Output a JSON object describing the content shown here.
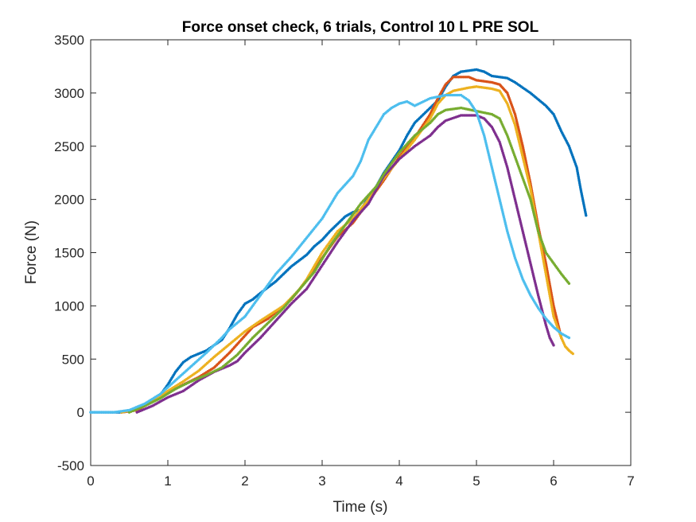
{
  "chart_data": {
    "type": "scatter",
    "title": "Force onset check, 6 trials, Control 10 L PRE SOL",
    "xlabel": "Time (s)",
    "ylabel": "Force (N)",
    "xlim": [
      0,
      7
    ],
    "ylim": [
      -500,
      3500
    ],
    "xticks": [
      0,
      1,
      2,
      3,
      4,
      5,
      6,
      7
    ],
    "yticks": [
      -500,
      0,
      500,
      1000,
      1500,
      2000,
      2500,
      3000,
      3500
    ],
    "xtick_labels": [
      "0",
      "1",
      "2",
      "3",
      "4",
      "5",
      "6",
      "7"
    ],
    "ytick_labels": [
      "-500",
      "0",
      "500",
      "1000",
      "1500",
      "2000",
      "2500",
      "3000",
      "3500"
    ],
    "grid": false,
    "series": [
      {
        "color": "#0072BD",
        "points": [
          [
            0,
            0
          ],
          [
            0.4,
            0
          ],
          [
            0.5,
            10
          ],
          [
            0.7,
            60
          ],
          [
            0.9,
            160
          ],
          [
            1.0,
            260
          ],
          [
            1.1,
            380
          ],
          [
            1.2,
            470
          ],
          [
            1.3,
            520
          ],
          [
            1.5,
            580
          ],
          [
            1.7,
            680
          ],
          [
            1.8,
            790
          ],
          [
            1.9,
            920
          ],
          [
            2.0,
            1020
          ],
          [
            2.1,
            1060
          ],
          [
            2.2,
            1120
          ],
          [
            2.4,
            1230
          ],
          [
            2.6,
            1370
          ],
          [
            2.8,
            1480
          ],
          [
            2.9,
            1560
          ],
          [
            3.0,
            1620
          ],
          [
            3.1,
            1700
          ],
          [
            3.3,
            1840
          ],
          [
            3.4,
            1880
          ],
          [
            3.5,
            1900
          ],
          [
            3.6,
            2020
          ],
          [
            3.7,
            2120
          ],
          [
            3.8,
            2250
          ],
          [
            4.0,
            2460
          ],
          [
            4.1,
            2600
          ],
          [
            4.2,
            2720
          ],
          [
            4.4,
            2860
          ],
          [
            4.5,
            2930
          ],
          [
            4.6,
            3060
          ],
          [
            4.7,
            3160
          ],
          [
            4.8,
            3200
          ],
          [
            5.0,
            3220
          ],
          [
            5.1,
            3200
          ],
          [
            5.2,
            3160
          ],
          [
            5.4,
            3140
          ],
          [
            5.5,
            3100
          ],
          [
            5.7,
            3000
          ],
          [
            5.9,
            2880
          ],
          [
            6.0,
            2800
          ],
          [
            6.1,
            2640
          ],
          [
            6.2,
            2500
          ],
          [
            6.3,
            2300
          ],
          [
            6.35,
            2100
          ],
          [
            6.42,
            1850
          ]
        ]
      },
      {
        "color": "#D95319",
        "points": [
          [
            0.4,
            0
          ],
          [
            0.6,
            20
          ],
          [
            0.8,
            100
          ],
          [
            1.0,
            180
          ],
          [
            1.2,
            260
          ],
          [
            1.4,
            330
          ],
          [
            1.6,
            420
          ],
          [
            1.8,
            560
          ],
          [
            2.0,
            720
          ],
          [
            2.1,
            800
          ],
          [
            2.3,
            880
          ],
          [
            2.6,
            1060
          ],
          [
            2.8,
            1240
          ],
          [
            3.0,
            1450
          ],
          [
            3.2,
            1650
          ],
          [
            3.4,
            1780
          ],
          [
            3.6,
            1980
          ],
          [
            3.8,
            2180
          ],
          [
            4.0,
            2400
          ],
          [
            4.2,
            2580
          ],
          [
            4.4,
            2800
          ],
          [
            4.5,
            2950
          ],
          [
            4.6,
            3080
          ],
          [
            4.7,
            3150
          ],
          [
            4.9,
            3150
          ],
          [
            5.0,
            3120
          ],
          [
            5.2,
            3100
          ],
          [
            5.3,
            3080
          ],
          [
            5.4,
            3000
          ],
          [
            5.5,
            2800
          ],
          [
            5.6,
            2500
          ],
          [
            5.7,
            2150
          ],
          [
            5.8,
            1750
          ],
          [
            5.9,
            1400
          ],
          [
            6.0,
            1000
          ],
          [
            6.1,
            700
          ]
        ]
      },
      {
        "color": "#EDB120",
        "points": [
          [
            0.4,
            0
          ],
          [
            0.6,
            30
          ],
          [
            0.8,
            100
          ],
          [
            1.0,
            200
          ],
          [
            1.2,
            290
          ],
          [
            1.4,
            390
          ],
          [
            1.6,
            520
          ],
          [
            1.8,
            640
          ],
          [
            2.0,
            760
          ],
          [
            2.2,
            860
          ],
          [
            2.5,
            1000
          ],
          [
            2.7,
            1150
          ],
          [
            2.8,
            1250
          ],
          [
            3.0,
            1500
          ],
          [
            3.2,
            1700
          ],
          [
            3.4,
            1820
          ],
          [
            3.6,
            2000
          ],
          [
            3.8,
            2200
          ],
          [
            4.0,
            2380
          ],
          [
            4.2,
            2560
          ],
          [
            4.4,
            2760
          ],
          [
            4.5,
            2900
          ],
          [
            4.6,
            2980
          ],
          [
            4.7,
            3020
          ],
          [
            4.9,
            3050
          ],
          [
            5.0,
            3060
          ],
          [
            5.2,
            3040
          ],
          [
            5.3,
            3020
          ],
          [
            5.4,
            2900
          ],
          [
            5.5,
            2700
          ],
          [
            5.6,
            2400
          ],
          [
            5.7,
            2100
          ],
          [
            5.8,
            1700
          ],
          [
            5.9,
            1300
          ],
          [
            6.0,
            900
          ],
          [
            6.1,
            700
          ],
          [
            6.15,
            620
          ],
          [
            6.2,
            580
          ],
          [
            6.25,
            550
          ]
        ]
      },
      {
        "color": "#7E2F8E",
        "points": [
          [
            0.6,
            0
          ],
          [
            0.8,
            60
          ],
          [
            1.0,
            140
          ],
          [
            1.2,
            200
          ],
          [
            1.4,
            300
          ],
          [
            1.6,
            380
          ],
          [
            1.8,
            440
          ],
          [
            1.9,
            480
          ],
          [
            2.0,
            560
          ],
          [
            2.2,
            700
          ],
          [
            2.4,
            860
          ],
          [
            2.6,
            1020
          ],
          [
            2.8,
            1160
          ],
          [
            3.0,
            1380
          ],
          [
            3.2,
            1600
          ],
          [
            3.4,
            1800
          ],
          [
            3.6,
            1960
          ],
          [
            3.8,
            2220
          ],
          [
            4.0,
            2380
          ],
          [
            4.2,
            2500
          ],
          [
            4.4,
            2600
          ],
          [
            4.5,
            2680
          ],
          [
            4.6,
            2740
          ],
          [
            4.8,
            2790
          ],
          [
            5.0,
            2790
          ],
          [
            5.1,
            2760
          ],
          [
            5.2,
            2680
          ],
          [
            5.3,
            2540
          ],
          [
            5.4,
            2300
          ],
          [
            5.5,
            2000
          ],
          [
            5.6,
            1700
          ],
          [
            5.7,
            1400
          ],
          [
            5.8,
            1100
          ],
          [
            5.9,
            820
          ],
          [
            5.95,
            700
          ],
          [
            6.0,
            630
          ]
        ]
      },
      {
        "color": "#77AC30",
        "points": [
          [
            0.5,
            0
          ],
          [
            0.7,
            60
          ],
          [
            0.9,
            130
          ],
          [
            1.1,
            220
          ],
          [
            1.3,
            290
          ],
          [
            1.5,
            350
          ],
          [
            1.7,
            420
          ],
          [
            1.9,
            540
          ],
          [
            2.1,
            700
          ],
          [
            2.3,
            840
          ],
          [
            2.5,
            980
          ],
          [
            2.7,
            1150
          ],
          [
            2.9,
            1320
          ],
          [
            3.1,
            1560
          ],
          [
            3.3,
            1760
          ],
          [
            3.5,
            1960
          ],
          [
            3.7,
            2120
          ],
          [
            3.8,
            2240
          ],
          [
            4.0,
            2440
          ],
          [
            4.2,
            2600
          ],
          [
            4.4,
            2720
          ],
          [
            4.5,
            2800
          ],
          [
            4.6,
            2840
          ],
          [
            4.8,
            2860
          ],
          [
            5.0,
            2830
          ],
          [
            5.2,
            2800
          ],
          [
            5.3,
            2760
          ],
          [
            5.4,
            2600
          ],
          [
            5.5,
            2400
          ],
          [
            5.6,
            2200
          ],
          [
            5.7,
            2000
          ],
          [
            5.8,
            1700
          ],
          [
            5.9,
            1500
          ],
          [
            6.0,
            1400
          ],
          [
            6.1,
            1300
          ],
          [
            6.2,
            1210
          ]
        ]
      },
      {
        "color": "#4DBEEE",
        "points": [
          [
            0,
            0
          ],
          [
            0.3,
            0
          ],
          [
            0.5,
            20
          ],
          [
            0.7,
            80
          ],
          [
            0.9,
            170
          ],
          [
            1.1,
            300
          ],
          [
            1.3,
            430
          ],
          [
            1.5,
            560
          ],
          [
            1.7,
            700
          ],
          [
            1.8,
            780
          ],
          [
            2.0,
            900
          ],
          [
            2.2,
            1100
          ],
          [
            2.4,
            1300
          ],
          [
            2.6,
            1460
          ],
          [
            2.8,
            1640
          ],
          [
            3.0,
            1820
          ],
          [
            3.2,
            2060
          ],
          [
            3.4,
            2220
          ],
          [
            3.5,
            2360
          ],
          [
            3.6,
            2560
          ],
          [
            3.7,
            2680
          ],
          [
            3.8,
            2800
          ],
          [
            3.9,
            2860
          ],
          [
            4.0,
            2900
          ],
          [
            4.1,
            2920
          ],
          [
            4.2,
            2880
          ],
          [
            4.4,
            2950
          ],
          [
            4.6,
            2980
          ],
          [
            4.8,
            2980
          ],
          [
            4.9,
            2930
          ],
          [
            5.0,
            2820
          ],
          [
            5.1,
            2600
          ],
          [
            5.2,
            2300
          ],
          [
            5.3,
            2000
          ],
          [
            5.4,
            1700
          ],
          [
            5.5,
            1450
          ],
          [
            5.6,
            1250
          ],
          [
            5.7,
            1100
          ],
          [
            5.8,
            980
          ],
          [
            5.9,
            880
          ],
          [
            6.0,
            800
          ],
          [
            6.1,
            740
          ],
          [
            6.2,
            700
          ]
        ]
      }
    ]
  }
}
